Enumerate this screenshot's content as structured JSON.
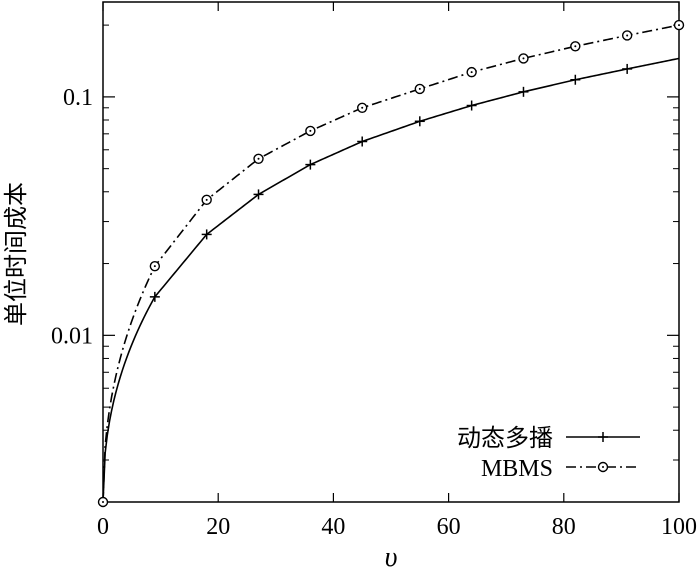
{
  "chart_data": {
    "type": "line",
    "xlabel": "υ",
    "ylabel": "单位时间成本",
    "xlim": [
      0,
      100
    ],
    "ylim": [
      0.002,
      0.25
    ],
    "y_scale": "log",
    "x_ticks": [
      0,
      20,
      40,
      60,
      80,
      100
    ],
    "x_tick_labels": [
      "0",
      "20",
      "40",
      "60",
      "80",
      "100"
    ],
    "y_ticks": [
      0.01,
      0.1
    ],
    "y_tick_labels": [
      "0.01",
      "0.1"
    ],
    "legend_position": "bottom-right",
    "series": [
      {
        "name": "动态多播",
        "line_style": "solid",
        "marker": "plus",
        "color": "#000000",
        "x": [
          0,
          9,
          18,
          27,
          36,
          45,
          55,
          64,
          73,
          82,
          91,
          100
        ],
        "y": [
          0.002,
          0.0145,
          0.0265,
          0.039,
          0.052,
          0.065,
          0.079,
          0.092,
          0.105,
          0.118,
          0.131,
          0.145
        ],
        "marker_x": [
          9,
          18,
          27,
          36,
          45,
          55,
          64,
          73,
          82,
          91
        ],
        "marker_y": [
          0.0145,
          0.0265,
          0.039,
          0.052,
          0.065,
          0.079,
          0.092,
          0.105,
          0.118,
          0.131
        ]
      },
      {
        "name": "MBMS",
        "line_style": "dashdot",
        "marker": "circle",
        "color": "#000000",
        "x": [
          0,
          9,
          18,
          27,
          36,
          45,
          55,
          64,
          73,
          82,
          91,
          100
        ],
        "y": [
          0.002,
          0.0195,
          0.037,
          0.055,
          0.072,
          0.09,
          0.108,
          0.127,
          0.145,
          0.163,
          0.181,
          0.2
        ],
        "marker_x": [
          0,
          9,
          18,
          27,
          36,
          45,
          55,
          64,
          73,
          82,
          91,
          100
        ],
        "marker_y": [
          0.002,
          0.0195,
          0.037,
          0.055,
          0.072,
          0.09,
          0.108,
          0.127,
          0.145,
          0.163,
          0.181,
          0.2
        ]
      }
    ]
  }
}
